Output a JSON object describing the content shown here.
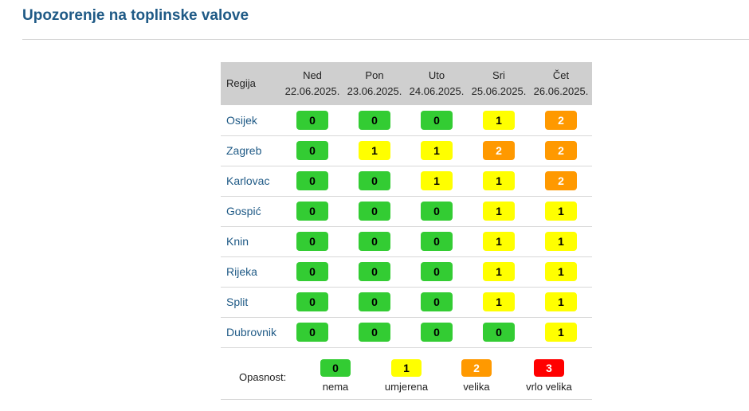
{
  "title": "Upozorenje na toplinske valove",
  "table": {
    "region_header": "Regija",
    "days": [
      {
        "day": "Ned",
        "date": "22.06.2025."
      },
      {
        "day": "Pon",
        "date": "23.06.2025."
      },
      {
        "day": "Uto",
        "date": "24.06.2025."
      },
      {
        "day": "Sri",
        "date": "25.06.2025."
      },
      {
        "day": "Čet",
        "date": "26.06.2025."
      }
    ],
    "rows": [
      {
        "region": "Osijek",
        "levels": [
          "0",
          "0",
          "0",
          "1",
          "2"
        ]
      },
      {
        "region": "Zagreb",
        "levels": [
          "0",
          "1",
          "1",
          "2",
          "2"
        ]
      },
      {
        "region": "Karlovac",
        "levels": [
          "0",
          "0",
          "1",
          "1",
          "2"
        ]
      },
      {
        "region": "Gospić",
        "levels": [
          "0",
          "0",
          "0",
          "1",
          "1"
        ]
      },
      {
        "region": "Knin",
        "levels": [
          "0",
          "0",
          "0",
          "1",
          "1"
        ]
      },
      {
        "region": "Rijeka",
        "levels": [
          "0",
          "0",
          "0",
          "1",
          "1"
        ]
      },
      {
        "region": "Split",
        "levels": [
          "0",
          "0",
          "0",
          "1",
          "1"
        ]
      },
      {
        "region": "Dubrovnik",
        "levels": [
          "0",
          "0",
          "0",
          "0",
          "1"
        ]
      }
    ]
  },
  "legend": {
    "label": "Opasnost:",
    "items": [
      {
        "level": "0",
        "text": "nema",
        "color": "#33cc33"
      },
      {
        "level": "1",
        "text": "umjerena",
        "color": "#ffff00"
      },
      {
        "level": "2",
        "text": "velika",
        "color": "#ff9900"
      },
      {
        "level": "3",
        "text": "vrlo velika",
        "color": "#ff0000"
      }
    ]
  },
  "colors": {
    "title": "#1f5a86",
    "region_link": "#1f5a86",
    "header_bg": "#cfcfcf",
    "level_0": "#33cc33",
    "level_1": "#ffff00",
    "level_2": "#ff9900",
    "level_3": "#ff0000"
  }
}
